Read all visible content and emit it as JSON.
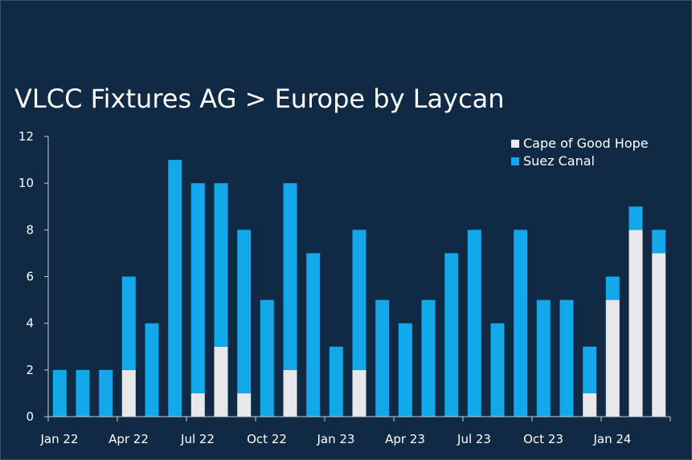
{
  "chart_data": {
    "type": "bar",
    "stacked": true,
    "title": "VLCC Fixtures AG > Europe by Laycan",
    "xlabel": "",
    "ylabel": "",
    "ylim": [
      0,
      12
    ],
    "yticks": [
      0,
      2,
      4,
      6,
      8,
      10,
      12
    ],
    "grid": false,
    "legend_position": "top-right",
    "categories": [
      "Jan 22",
      "Feb 22",
      "Mar 22",
      "Apr 22",
      "May 22",
      "Jun 22",
      "Jul 22",
      "Aug 22",
      "Sep 22",
      "Oct 22",
      "Nov 22",
      "Dec 22",
      "Jan 23",
      "Feb 23",
      "Mar 23",
      "Apr 23",
      "May 23",
      "Jun 23",
      "Jul 23",
      "Aug 23",
      "Sep 23",
      "Oct 23",
      "Nov 23",
      "Dec 23",
      "Jan 24",
      "Feb 24",
      "Mar 24"
    ],
    "xtick_labels": [
      "Jan 22",
      "Apr 22",
      "Jul 22",
      "Oct 22",
      "Jan 23",
      "Apr 23",
      "Jul 23",
      "Oct 23",
      "Jan 24"
    ],
    "series": [
      {
        "name": "Cape of Good Hope",
        "color": "#e8e8ea",
        "values": [
          0,
          0,
          0,
          2,
          0,
          0,
          1,
          3,
          1,
          0,
          2,
          0,
          0,
          2,
          0,
          0,
          0,
          0,
          0,
          0,
          0,
          0,
          0,
          1,
          5,
          8,
          7
        ]
      },
      {
        "name": "Suez Canal",
        "color": "#12a8ea",
        "values": [
          2,
          2,
          2,
          4,
          4,
          11,
          9,
          7,
          7,
          5,
          8,
          7,
          3,
          6,
          5,
          4,
          5,
          7,
          8,
          4,
          8,
          5,
          5,
          2,
          1,
          1,
          1
        ]
      }
    ]
  }
}
